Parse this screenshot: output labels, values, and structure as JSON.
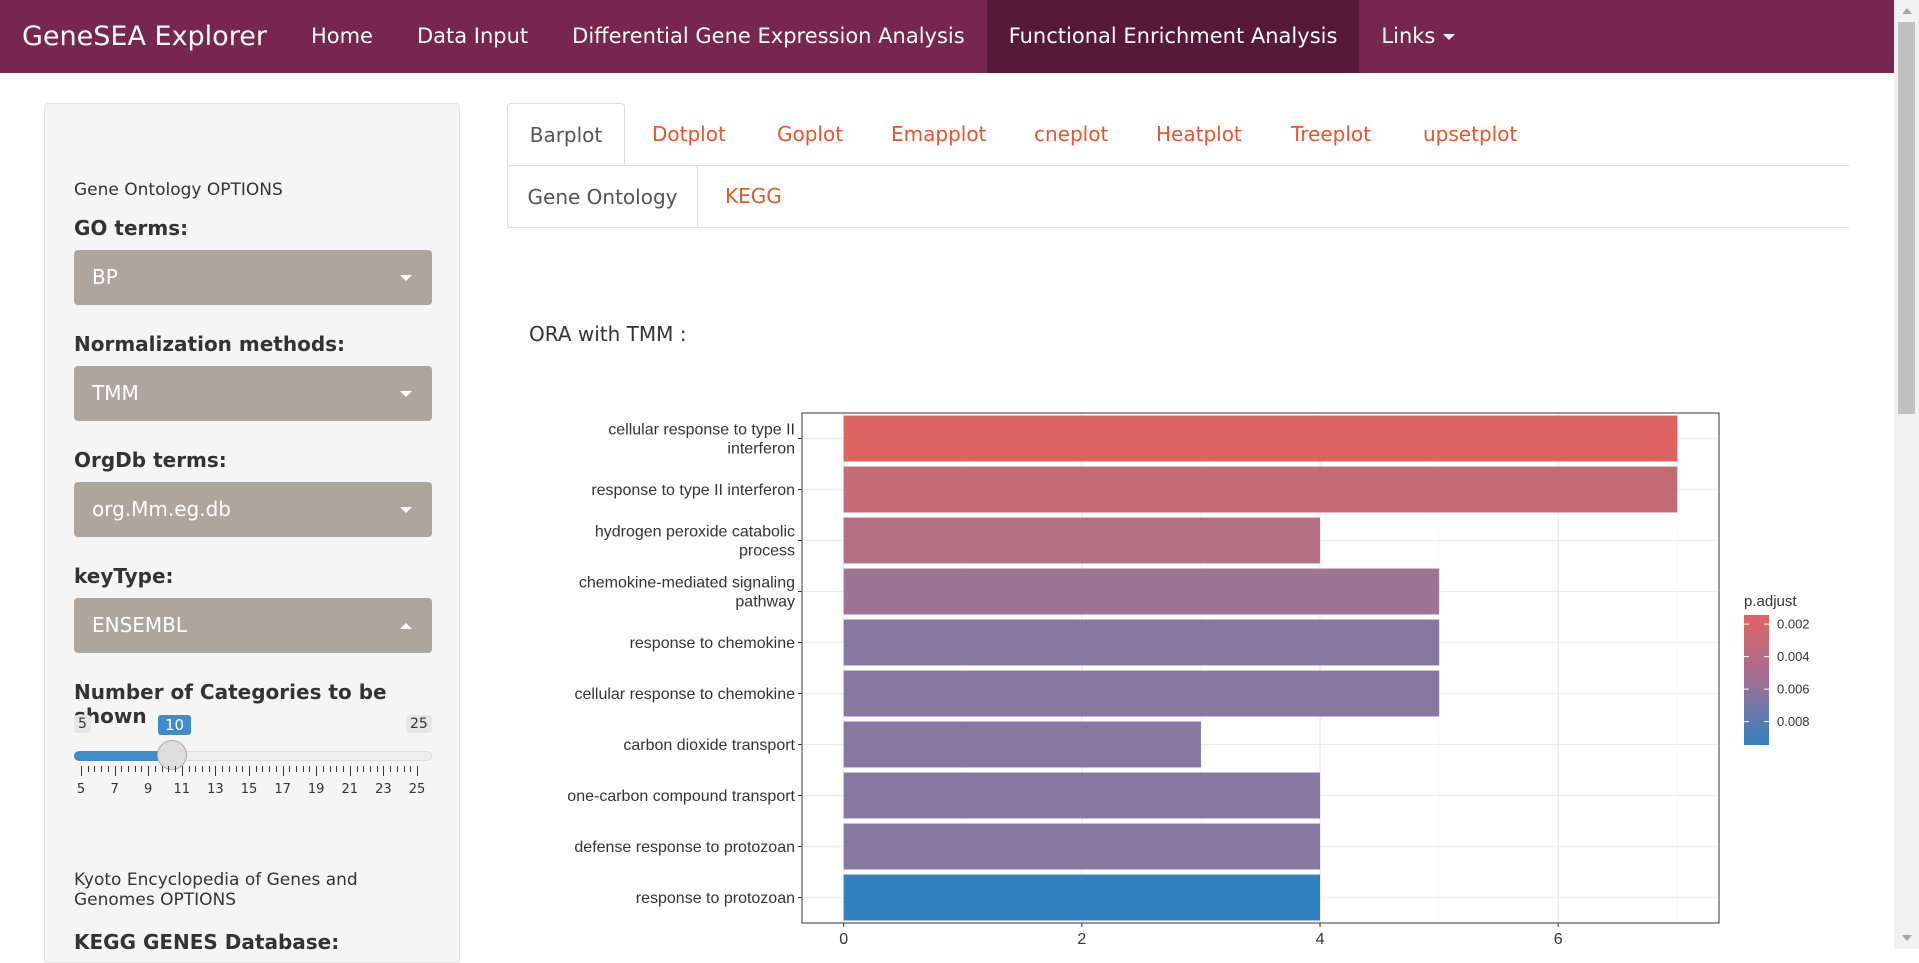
{
  "navbar": {
    "brand": "GeneSEA Explorer",
    "items": [
      {
        "label": "Home"
      },
      {
        "label": "Data Input"
      },
      {
        "label": "Differential Gene Expression Analysis"
      },
      {
        "label": "Functional Enrichment Analysis"
      },
      {
        "label": "Links"
      }
    ],
    "active_index": 3
  },
  "sidebar": {
    "go_section_title": "Gene Ontology OPTIONS",
    "go_terms": {
      "label": "GO terms:",
      "value": "BP"
    },
    "normalization": {
      "label": "Normalization methods:",
      "value": "TMM"
    },
    "orgdb": {
      "label": "OrgDb terms:",
      "value": "org.Mm.eg.db"
    },
    "keytype": {
      "label": "keyType:",
      "value": "ENSEMBL"
    },
    "categories": {
      "label": "Number of Categories to be shown",
      "min": "5",
      "max": "25",
      "value": "10",
      "tick_labels": [
        "5",
        "7",
        "9",
        "11",
        "13",
        "15",
        "17",
        "19",
        "21",
        "23",
        "25"
      ]
    },
    "kegg_section_title": "Kyoto Encyclopedia of Genes and Genomes OPTIONS",
    "kegg_db_label": "KEGG GENES Database:"
  },
  "plot_tabs": [
    "Barplot",
    "Dotplot",
    "Goplot",
    "Emapplot",
    "cneplot",
    "Heatplot",
    "Treeplot",
    "upsetplot"
  ],
  "db_tabs": [
    "Gene Ontology",
    "KEGG"
  ],
  "ora_title": "ORA with TMM :",
  "chart_data": {
    "type": "bar",
    "orientation": "horizontal",
    "categories": [
      "cellular response to type II\ninterferon",
      "response to type II interferon",
      "hydrogen peroxide catabolic\nprocess",
      "chemokine-mediated signaling\npathway",
      "response to chemokine",
      "cellular response to chemokine",
      "carbon dioxide transport",
      "one-carbon compound transport",
      "defense response to protozoan",
      "response to protozoan"
    ],
    "values": [
      7,
      7,
      4,
      5,
      5,
      5,
      3,
      4,
      4,
      4
    ],
    "bar_colors": [
      "#e06363",
      "#c46b78",
      "#b46f85",
      "#9c7592",
      "#8578a1",
      "#8578a1",
      "#8578a1",
      "#8578a1",
      "#8578a1",
      "#3280bd"
    ],
    "xlim": [
      -0.35,
      7.35
    ],
    "x_ticks": [
      "0",
      "2",
      "4",
      "6"
    ],
    "grid": true,
    "legend": {
      "title": "p.adjust",
      "labels": [
        "0.002",
        "0.004",
        "0.006",
        "0.008"
      ],
      "color_high": "#e06363",
      "color_low": "#3280bd",
      "placement": "right"
    }
  }
}
